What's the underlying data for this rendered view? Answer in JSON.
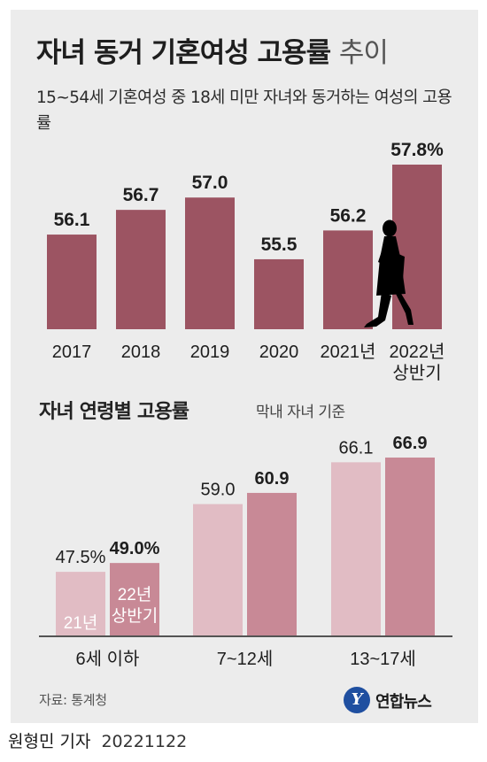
{
  "header": {
    "title": "자녀 동거 기혼여성 고용률",
    "title_suffix": "추이",
    "subtitle": "15~54세 기혼여성 중 18세 미만 자녀와 동거하는 여성의 고용률"
  },
  "section2": {
    "title": "자녀 연령별 고용률",
    "note": "막내 자녀 기준"
  },
  "footer": {
    "source": "자료: 통계청",
    "logo_mark": "Y",
    "logo_text": "연합뉴스",
    "byline": "원형민 기자",
    "date": "20221122"
  },
  "colors": {
    "bar_main": "#9c5462",
    "bar_21": "#e1bcc4",
    "bar_22": "#c88996",
    "panel_bg": "#ececec",
    "silhouette": "#000000"
  },
  "icons": {
    "silhouette": "walking-woman-icon"
  },
  "chart_data": [
    {
      "type": "bar",
      "categories": [
        "2017",
        "2018",
        "2019",
        "2020",
        "2021년",
        "2022년\n상반기"
      ],
      "values": [
        56.1,
        56.7,
        57.0,
        55.5,
        56.2,
        57.8
      ],
      "labels": [
        "56.1",
        "56.7",
        "57.0",
        "55.5",
        "56.2",
        "57.8%"
      ],
      "title": "자녀 동거 기혼여성 고용률 추이",
      "ylabel": "",
      "ylim": [
        53.8,
        57.8
      ]
    },
    {
      "type": "bar",
      "title": "자녀 연령별 고용률",
      "categories": [
        "6세 이하",
        "7~12세",
        "13~17세"
      ],
      "series": [
        {
          "name": "21년",
          "values": [
            47.5,
            59.0,
            66.1
          ],
          "labels": [
            "47.5%",
            "59.0",
            "66.1"
          ]
        },
        {
          "name": "22년\n상반기",
          "values": [
            49.0,
            60.9,
            66.9
          ],
          "labels": [
            "49.0%",
            "60.9",
            "66.9"
          ]
        }
      ],
      "ylim": [
        36.7,
        66.9
      ]
    }
  ]
}
